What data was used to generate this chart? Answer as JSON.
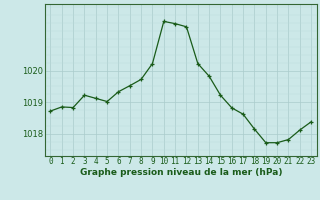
{
  "x": [
    0,
    1,
    2,
    3,
    4,
    5,
    6,
    7,
    8,
    9,
    10,
    11,
    12,
    13,
    14,
    15,
    16,
    17,
    18,
    19,
    20,
    21,
    22,
    23
  ],
  "y": [
    1018.72,
    1018.85,
    1018.83,
    1019.22,
    1019.12,
    1019.02,
    1019.33,
    1019.52,
    1019.72,
    1020.22,
    1021.55,
    1021.48,
    1021.38,
    1020.22,
    1019.82,
    1019.22,
    1018.82,
    1018.62,
    1018.15,
    1017.72,
    1017.72,
    1017.82,
    1018.12,
    1018.38
  ],
  "line_color": "#1a5c1a",
  "marker_color": "#1a5c1a",
  "bg_color": "#cce8e8",
  "grid_color_major": "#aacccc",
  "grid_color_minor": "#bbdddd",
  "xlabel": "Graphe pression niveau de la mer (hPa)",
  "xlabel_fontsize": 6.5,
  "yticks": [
    1018,
    1019,
    1020
  ],
  "ylim": [
    1017.3,
    1022.1
  ],
  "xlim": [
    -0.5,
    23.5
  ],
  "xtick_labels": [
    "0",
    "1",
    "2",
    "3",
    "4",
    "5",
    "6",
    "7",
    "8",
    "9",
    "10",
    "11",
    "12",
    "13",
    "14",
    "15",
    "16",
    "17",
    "18",
    "19",
    "20",
    "21",
    "22",
    "23"
  ],
  "tick_fontsize": 5.5,
  "axis_color": "#1a5c1a",
  "spine_color": "#336633"
}
